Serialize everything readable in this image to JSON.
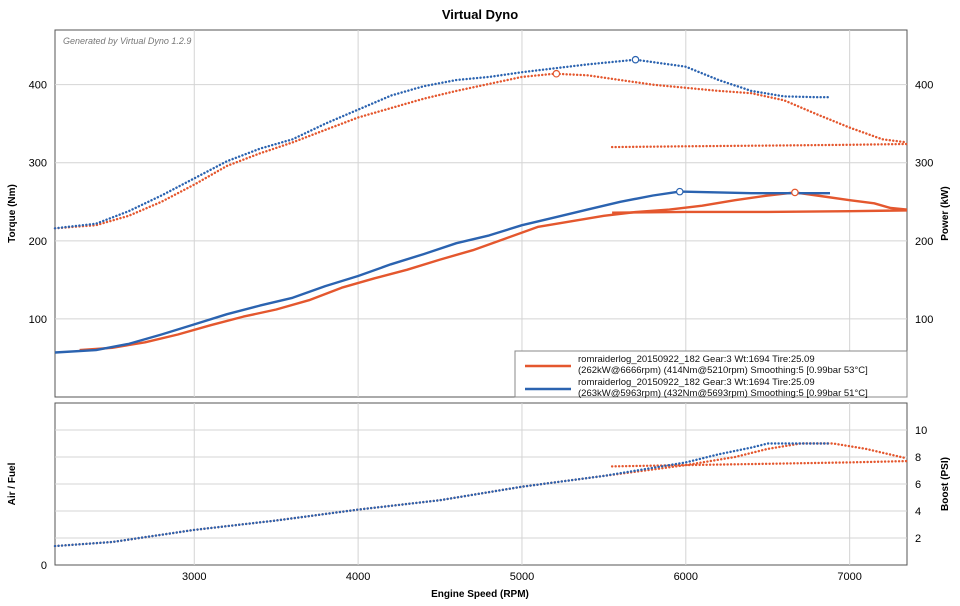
{
  "chart_data": {
    "type": "line",
    "title": "Virtual Dyno",
    "watermark": "Generated by Virtual Dyno 1.2.9",
    "xlabel": "Engine Speed (RPM)",
    "xlim": [
      2150,
      7350
    ],
    "x_ticks": [
      "3000",
      "4000",
      "5000",
      "6000",
      "7000"
    ],
    "colors": {
      "run1": "#e4572e",
      "run2": "#2b63b0"
    },
    "top_panel": {
      "ylabel_left": "Torque (Nm)",
      "ylabel_right": "Power (kW)",
      "ylim": [
        0,
        470
      ],
      "y_ticks_left": [
        "100",
        "200",
        "300",
        "400"
      ],
      "y_ticks_right": [
        "100",
        "200",
        "300",
        "400"
      ],
      "series": [
        {
          "name": "Run 1 Torque (Nm)",
          "color": "#e4572e",
          "style": "dotted",
          "x": [
            2150,
            2400,
            2600,
            2800,
            3000,
            3200,
            3400,
            3600,
            3800,
            4000,
            4200,
            4400,
            4600,
            4800,
            5000,
            5200,
            5400,
            5600,
            5800,
            6000,
            6200,
            6400,
            6600,
            6800,
            7000,
            7200,
            7350
          ],
          "y": [
            216,
            220,
            232,
            250,
            272,
            296,
            312,
            326,
            342,
            358,
            370,
            382,
            392,
            401,
            410,
            414,
            412,
            406,
            400,
            396,
            392,
            389,
            380,
            362,
            345,
            330,
            326
          ]
        },
        {
          "name": "Run 1 Torque return",
          "color": "#e4572e",
          "style": "dotted",
          "x": [
            5550,
            6000,
            6500,
            7000,
            7350
          ],
          "y": [
            320,
            321,
            322,
            323,
            324
          ]
        },
        {
          "name": "Run 2 Torque (Nm)",
          "color": "#2b63b0",
          "style": "dotted",
          "x": [
            2150,
            2400,
            2600,
            2800,
            3000,
            3200,
            3400,
            3600,
            3800,
            4000,
            4200,
            4400,
            4600,
            4800,
            5000,
            5200,
            5400,
            5693,
            6000,
            6200,
            6400,
            6600,
            6800,
            6880
          ],
          "y": [
            216,
            222,
            238,
            258,
            280,
            302,
            318,
            330,
            350,
            368,
            386,
            398,
            406,
            410,
            416,
            421,
            426,
            432,
            423,
            406,
            392,
            385,
            384,
            384
          ]
        },
        {
          "name": "Run 1 Power (kW)",
          "color": "#e4572e",
          "style": "solid",
          "x": [
            2300,
            2500,
            2700,
            2900,
            3100,
            3300,
            3500,
            3700,
            3900,
            4100,
            4300,
            4500,
            4700,
            4900,
            5100,
            5300,
            5500,
            5700,
            5900,
            6100,
            6300,
            6500,
            6666,
            6800,
            7000,
            7150,
            7250,
            7350
          ],
          "y": [
            60,
            63,
            70,
            80,
            92,
            103,
            112,
            124,
            140,
            152,
            163,
            176,
            188,
            203,
            218,
            225,
            232,
            237,
            240,
            245,
            252,
            258,
            262,
            258,
            252,
            248,
            242,
            240
          ]
        },
        {
          "name": "Run 1 Power return",
          "color": "#e4572e",
          "style": "solid",
          "x": [
            5550,
            6000,
            6500,
            7000,
            7350
          ],
          "y": [
            236,
            237,
            237,
            238,
            239
          ]
        },
        {
          "name": "Run 2 Power (kW)",
          "color": "#2b63b0",
          "style": "solid",
          "x": [
            2150,
            2400,
            2600,
            2800,
            3000,
            3200,
            3400,
            3600,
            3800,
            4000,
            4200,
            4400,
            4600,
            4800,
            5000,
            5200,
            5400,
            5600,
            5800,
            5963,
            6200,
            6400,
            6600,
            6800,
            6880
          ],
          "y": [
            57,
            60,
            68,
            80,
            93,
            106,
            117,
            127,
            142,
            155,
            170,
            183,
            197,
            207,
            220,
            230,
            240,
            250,
            258,
            263,
            262,
            261,
            261,
            261,
            261
          ]
        }
      ],
      "peak_markers": [
        {
          "x": 5210,
          "y": 414,
          "color": "#e4572e"
        },
        {
          "x": 5693,
          "y": 432,
          "color": "#2b63b0"
        },
        {
          "x": 6666,
          "y": 262,
          "color": "#e4572e"
        },
        {
          "x": 5963,
          "y": 263,
          "color": "#2b63b0"
        }
      ],
      "legend": {
        "placement": "bottom-right",
        "entries": [
          {
            "color": "#e4572e",
            "line1": "romraiderlog_20150922_182 Gear:3 Wt:1694 Tire:25.09",
            "line2": "(262kW@6666rpm) (414Nm@5210rpm) Smoothing:5 [0.99bar 53°C]"
          },
          {
            "color": "#2b63b0",
            "line1": "romraiderlog_20150922_182 Gear:3 Wt:1694 Tire:25.09",
            "line2": "(263kW@5963rpm) (432Nm@5693rpm) Smoothing:5 [0.99bar 51°C]"
          }
        ]
      }
    },
    "bottom_panel": {
      "ylabel_left": "Air / Fuel",
      "ylabel_right": "Boost (PSI)",
      "ylim": [
        0,
        12
      ],
      "y_ticks_left": [
        "0"
      ],
      "y_ticks_right": [
        "2",
        "4",
        "6",
        "8",
        "10"
      ],
      "series": [
        {
          "name": "Run 1 Boost (PSI)",
          "color": "#e4572e",
          "style": "dotted",
          "x": [
            2150,
            2500,
            3000,
            3500,
            4000,
            4500,
            5000,
            5500,
            6000,
            6300,
            6500,
            6700,
            6900,
            7100,
            7350
          ],
          "y": [
            1.4,
            1.7,
            2.6,
            3.3,
            4.1,
            4.8,
            5.8,
            6.6,
            7.4,
            8.0,
            8.6,
            9.0,
            9.0,
            8.6,
            7.9
          ]
        },
        {
          "name": "Run 1 Boost return",
          "color": "#e4572e",
          "style": "dotted",
          "x": [
            5550,
            6000,
            6500,
            7000,
            7350
          ],
          "y": [
            7.3,
            7.4,
            7.5,
            7.6,
            7.7
          ]
        },
        {
          "name": "Run 2 Boost (PSI)",
          "color": "#2b63b0",
          "style": "dotted",
          "x": [
            2150,
            2500,
            3000,
            3500,
            4000,
            4500,
            5000,
            5500,
            6000,
            6200,
            6400,
            6500,
            6700,
            6880
          ],
          "y": [
            1.4,
            1.7,
            2.6,
            3.3,
            4.1,
            4.8,
            5.8,
            6.6,
            7.6,
            8.2,
            8.7,
            9.0,
            9.0,
            9.0
          ]
        }
      ]
    }
  }
}
